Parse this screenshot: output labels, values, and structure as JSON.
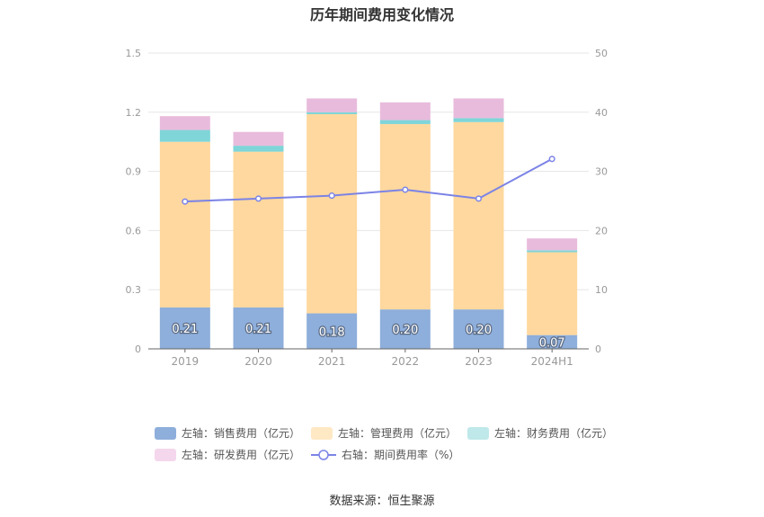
{
  "chart_data": {
    "type": "bar",
    "title": "历年期间费用变化情况",
    "categories": [
      "2019",
      "2020",
      "2021",
      "2022",
      "2023",
      "2024H1"
    ],
    "series": [
      {
        "name": "左轴：销售费用（亿元）",
        "type": "bar",
        "axis": "left",
        "color": "#8eaedb",
        "values": [
          0.21,
          0.21,
          0.18,
          0.2,
          0.2,
          0.07
        ],
        "labels": [
          "0.21",
          "0.21",
          "0.18",
          "0.20",
          "0.20",
          "0.07"
        ]
      },
      {
        "name": "左轴：管理费用（亿元）",
        "type": "bar",
        "axis": "left",
        "color": "#fed89e",
        "values": [
          0.84,
          0.79,
          1.01,
          0.94,
          0.95,
          0.42
        ]
      },
      {
        "name": "左轴：财务费用（亿元）",
        "type": "bar",
        "axis": "left",
        "color": "#7fd5d8",
        "values": [
          0.06,
          0.03,
          0.01,
          0.02,
          0.02,
          0.01
        ]
      },
      {
        "name": "左轴：研发费用（亿元）",
        "type": "bar",
        "axis": "left",
        "color": "#e8bbdc",
        "values": [
          0.07,
          0.07,
          0.07,
          0.09,
          0.1,
          0.06
        ]
      },
      {
        "name": "右轴：期间费用率（%）",
        "type": "line",
        "axis": "right",
        "color": "#7b83e6",
        "values": [
          24.9,
          25.4,
          25.9,
          26.9,
          25.4,
          32.1
        ]
      }
    ],
    "left_axis": {
      "ylim": [
        0,
        1.5
      ],
      "ticks": [
        "0",
        "0.3",
        "0.6",
        "0.9",
        "1.2",
        "1.5"
      ],
      "tick_values": [
        0,
        0.3,
        0.6,
        0.9,
        1.2,
        1.5
      ]
    },
    "right_axis": {
      "ylim": [
        0,
        50
      ],
      "ticks": [
        "0",
        "10",
        "20",
        "30",
        "40",
        "50"
      ],
      "tick_values": [
        0,
        10,
        20,
        30,
        40,
        50
      ]
    },
    "grid": true,
    "legend_position": "bottom"
  },
  "legend": {
    "colors": {
      "sales": "#8eaedb",
      "admin": "#ffe8c4",
      "finance": "#bfe8ea",
      "rd": "#f4d7ec",
      "rate": "#7b83e6"
    },
    "sales": "左轴：销售费用（亿元）",
    "admin": "左轴：管理费用（亿元）",
    "finance": "左轴：财务费用（亿元）",
    "rd": "左轴：研发费用（亿元）",
    "rate": "右轴：期间费用率（%）"
  },
  "source": "数据来源：恒生聚源"
}
